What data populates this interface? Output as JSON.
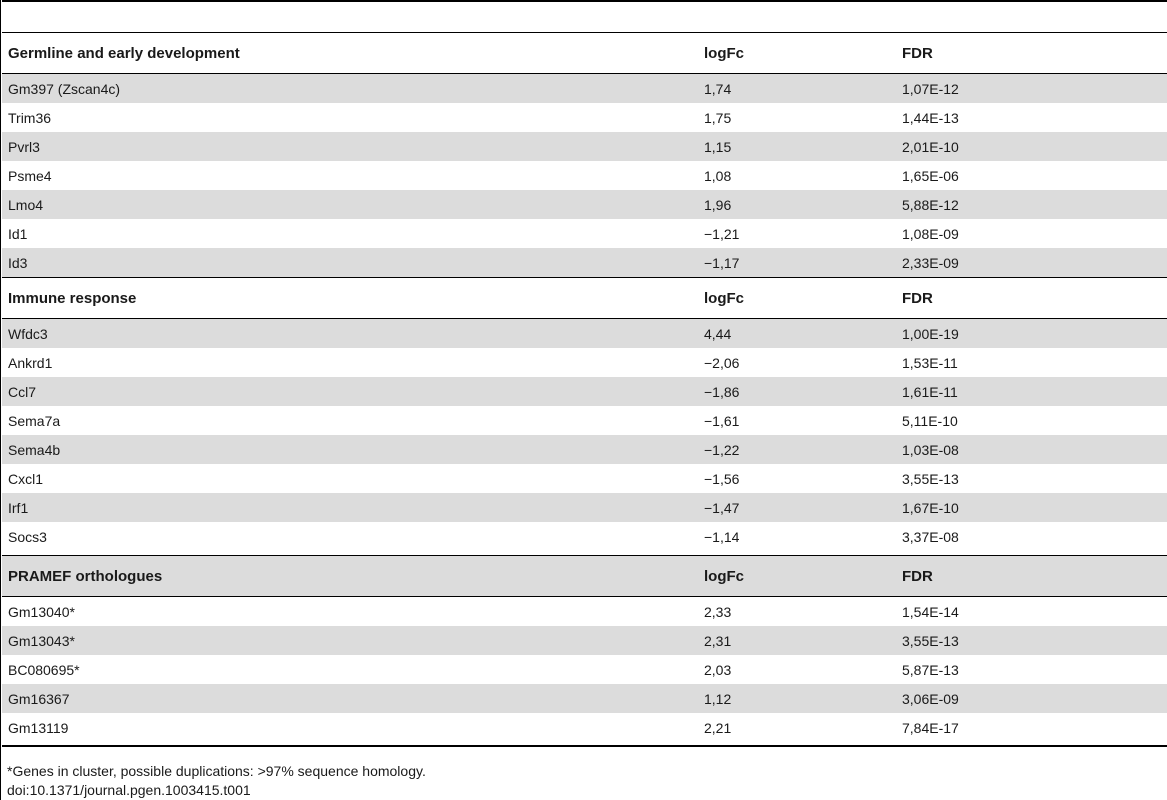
{
  "table": {
    "sections": [
      {
        "title": "Germline and early development",
        "col_logfc": "logFc",
        "col_fdr": "FDR",
        "rows": [
          {
            "gene": "Gm397 (Zscan4c)",
            "logfc": "1,74",
            "fdr": "1,07E-12"
          },
          {
            "gene": "Trim36",
            "logfc": "1,75",
            "fdr": "1,44E-13"
          },
          {
            "gene": "Pvrl3",
            "logfc": "1,15",
            "fdr": "2,01E-10"
          },
          {
            "gene": "Psme4",
            "logfc": "1,08",
            "fdr": "1,65E-06"
          },
          {
            "gene": "Lmo4",
            "logfc": "1,96",
            "fdr": "5,88E-12"
          },
          {
            "gene": "Id1",
            "logfc": "−1,21",
            "fdr": "1,08E-09"
          },
          {
            "gene": "Id3",
            "logfc": "−1,17",
            "fdr": "2,33E-09"
          }
        ]
      },
      {
        "title": "Immune response",
        "col_logfc": "logFc",
        "col_fdr": "FDR",
        "rows": [
          {
            "gene": "Wfdc3",
            "logfc": "4,44",
            "fdr": "1,00E-19"
          },
          {
            "gene": "Ankrd1",
            "logfc": "−2,06",
            "fdr": "1,53E-11"
          },
          {
            "gene": "Ccl7",
            "logfc": "−1,86",
            "fdr": "1,61E-11"
          },
          {
            "gene": "Sema7a",
            "logfc": "−1,61",
            "fdr": "5,11E-10"
          },
          {
            "gene": "Sema4b",
            "logfc": "−1,22",
            "fdr": "1,03E-08"
          },
          {
            "gene": "Cxcl1",
            "logfc": "−1,56",
            "fdr": "3,55E-13"
          },
          {
            "gene": "Irf1",
            "logfc": "−1,47",
            "fdr": "1,67E-10"
          },
          {
            "gene": "Socs3",
            "logfc": "−1,14",
            "fdr": "3,37E-08"
          }
        ]
      },
      {
        "title": "PRAMEF orthologues",
        "col_logfc": "logFc",
        "col_fdr": "FDR",
        "rows": [
          {
            "gene": "Gm13040*",
            "logfc": "2,33",
            "fdr": "1,54E-14"
          },
          {
            "gene": "Gm13043*",
            "logfc": "2,31",
            "fdr": "3,55E-13"
          },
          {
            "gene": "BC080695*",
            "logfc": "2,03",
            "fdr": "5,87E-13"
          },
          {
            "gene": "Gm16367",
            "logfc": "1,12",
            "fdr": "3,06E-09"
          },
          {
            "gene": "Gm13119",
            "logfc": "2,21",
            "fdr": "7,84E-17"
          }
        ]
      }
    ]
  },
  "footnote": "*Genes in cluster, possible duplications: >97% sequence homology.",
  "doi": "doi:10.1371/journal.pgen.1003415.t001"
}
